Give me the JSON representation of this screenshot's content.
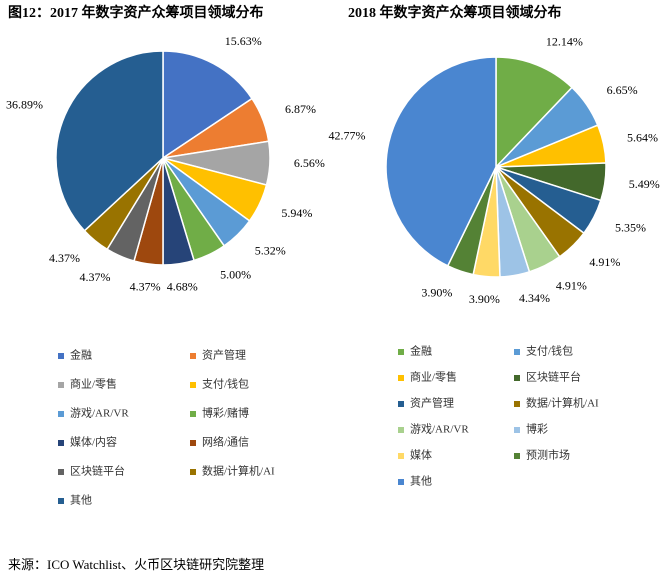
{
  "chart_data": [
    {
      "type": "pie",
      "title": "图12：2017 年数字资产众筹项目领域分布",
      "categories": [
        "金融",
        "资产管理",
        "商业/零售",
        "支付/钱包",
        "游戏/AR/VR",
        "博彩/赌博",
        "媒体/内容",
        "网络/通信",
        "区块链平台",
        "数据/计算机/AI",
        "其他"
      ],
      "values": [
        15.63,
        6.87,
        6.56,
        5.94,
        5.32,
        5,
        4.68,
        4.37,
        4.37,
        4.37,
        36.89
      ],
      "value_labels": [
        "15.63%",
        "6.87%",
        "6.56%",
        "5.94%",
        "5.32%",
        "5.00%",
        "4.68%",
        "4.37%",
        "4.37%",
        "4.37%",
        "36.89%"
      ],
      "colors": [
        "#4472c4",
        "#ed7d31",
        "#a5a5a5",
        "#ffc000",
        "#5b9bd5",
        "#70ad47",
        "#264478",
        "#9e480e",
        "#636363",
        "#997300",
        "#255e91"
      ]
    },
    {
      "type": "pie",
      "title": "2018 年数字资产众筹项目领域分布",
      "categories": [
        "金融",
        "支付/钱包",
        "商业/零售",
        "区块链平台",
        "资产管理",
        "数据/计算机/AI",
        "游戏/AR/VR",
        "博彩",
        "媒体",
        "预测市场",
        "其他"
      ],
      "values": [
        12.14,
        6.65,
        5.64,
        5.49,
        5.35,
        4.91,
        4.91,
        4.34,
        3.9,
        3.9,
        42.77
      ],
      "value_labels": [
        "12.14%",
        "6.65%",
        "5.64%",
        "5.49%",
        "5.35%",
        "4.91%",
        "4.91%",
        "4.34%",
        "3.90%",
        "3.90%",
        "42.77%"
      ],
      "colors": [
        "#70ad47",
        "#5b9bd5",
        "#ffc000",
        "#43682b",
        "#255e91",
        "#997300",
        "#a9d18e",
        "#9dc3e6",
        "#ffd966",
        "#548235",
        "#4a86d0"
      ]
    }
  ],
  "source": "来源：ICO Watchlist、火币区块链研究院整理"
}
